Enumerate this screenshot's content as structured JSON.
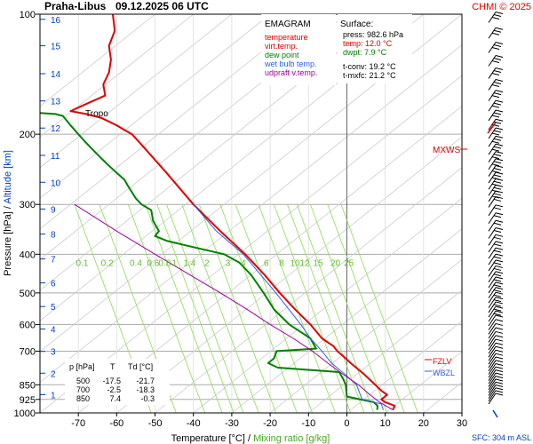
{
  "header": {
    "station": "Praha-Libus",
    "datetime": "09.12.2025 06 UTC",
    "copyright": "CHMI © 2025"
  },
  "legend": {
    "title": "EMAGRAM",
    "entries": [
      {
        "label": "temperature",
        "color": "#e00000"
      },
      {
        "label": "virt.temp.",
        "color": "#e00000"
      },
      {
        "label": "dew point",
        "color": "#008000"
      },
      {
        "label": "wet bulb temp.",
        "color": "#3060e0"
      },
      {
        "label": "udpraft v.temp.",
        "color": "#a000a0"
      }
    ]
  },
  "surface": {
    "title": "Surface:",
    "press": "press: 982.6 hPa",
    "temp": "temp: 12.0 °C",
    "dwpt": "dwpt: 7.9 °C",
    "tconv": "t-conv: 19.2 °C",
    "tmxfc": "t-mxfc: 21.2 °C"
  },
  "table": {
    "headers": [
      "p [hPa]",
      "T",
      "Td [°C]"
    ],
    "rows": [
      [
        "500",
        "-17.5",
        "-21.7"
      ],
      [
        "700",
        "-2.5",
        "-18.3"
      ],
      [
        "850",
        "7.4",
        "-0.3"
      ]
    ]
  },
  "labels": {
    "tropo": "Tropo",
    "mxws": "MXWS",
    "fzlv": "FZLV",
    "wbzl": "WBZL",
    "sfc": "SFC: 304 m ASL",
    "ylabel_pressure": "Pressure [hPa]",
    "ylabel_sep": " / ",
    "ylabel_altitude": "Altitude [km]",
    "xlabel_temp": "Temperature [°C]",
    "xlabel_sep": " / ",
    "xlabel_mix": "Mixing ratio [g/kg]"
  },
  "colors": {
    "temperature": "#e00000",
    "dewpoint": "#008000",
    "wetbulb": "#3060e0",
    "parcel": "#a000a0",
    "mixing": "#99dd66",
    "grid": "#aaaaaa",
    "axis_blue": "#0040c0"
  },
  "chart_data": {
    "type": "line",
    "title": "EMAGRAM",
    "xlabel": "Temperature [°C] / Mixing ratio [g/kg]",
    "ylabel": "Pressure [hPa] / Altitude [km]",
    "xlim": [
      -80,
      30
    ],
    "ylim": [
      1000,
      100
    ],
    "y_scale": "log",
    "x_ticks": [
      -70,
      -60,
      -50,
      -40,
      -30,
      -20,
      -10,
      0,
      10,
      20,
      30
    ],
    "pressure_ticks": [
      100,
      200,
      300,
      400,
      500,
      600,
      700,
      850,
      925,
      1000
    ],
    "altitude_ticks": [
      {
        "km": 1,
        "p": 900
      },
      {
        "km": 2,
        "p": 795
      },
      {
        "km": 3,
        "p": 701
      },
      {
        "km": 4,
        "p": 616
      },
      {
        "km": 5,
        "p": 541
      },
      {
        "km": 6,
        "p": 472
      },
      {
        "km": 7,
        "p": 411
      },
      {
        "km": 8,
        "p": 356
      },
      {
        "km": 9,
        "p": 308
      },
      {
        "km": 10,
        "p": 264
      },
      {
        "km": 11,
        "p": 226
      },
      {
        "km": 12,
        "p": 193
      },
      {
        "km": 13,
        "p": 165
      },
      {
        "km": 14,
        "p": 141
      },
      {
        "km": 15,
        "p": 120
      },
      {
        "km": 16,
        "p": 103
      }
    ],
    "mixing_ratio_labels": [
      "0.1",
      "0.2",
      "0.4",
      "0.6",
      "0.8",
      "1",
      "1.4",
      "2",
      "3",
      "4",
      "6",
      "8",
      "10",
      "12",
      "15",
      "20",
      "25"
    ],
    "mixing_ratio_values": [
      0.1,
      0.2,
      0.4,
      0.6,
      0.8,
      1,
      1.4,
      2,
      3,
      4,
      6,
      8,
      10,
      12,
      15,
      20,
      25
    ],
    "grid": true,
    "series": [
      {
        "name": "temperature",
        "points": [
          [
            12.0,
            982.6
          ],
          [
            12.5,
            960
          ],
          [
            10.0,
            940
          ],
          [
            9.0,
            925
          ],
          [
            10.5,
            900
          ],
          [
            9.0,
            880
          ],
          [
            7.4,
            850
          ],
          [
            4.5,
            800
          ],
          [
            1.0,
            750
          ],
          [
            -1.0,
            720
          ],
          [
            -2.5,
            700
          ],
          [
            -3.5,
            680
          ],
          [
            -6.5,
            650
          ],
          [
            -9.5,
            600
          ],
          [
            -13.5,
            550
          ],
          [
            -17.5,
            500
          ],
          [
            -21.5,
            450
          ],
          [
            -26.5,
            400
          ],
          [
            -33.0,
            350
          ],
          [
            -40.0,
            300
          ],
          [
            -47.0,
            250
          ],
          [
            -54.0,
            210
          ],
          [
            -56.0,
            200
          ],
          [
            -60.0,
            190
          ],
          [
            -64.0,
            182
          ],
          [
            -68.0,
            178
          ],
          [
            -72.0,
            175
          ],
          [
            -68.0,
            168
          ],
          [
            -63.0,
            160
          ],
          [
            -63.5,
            150
          ],
          [
            -62.0,
            140
          ],
          [
            -61.5,
            130
          ],
          [
            -62.0,
            120
          ],
          [
            -60.5,
            110
          ],
          [
            -61.0,
            100
          ]
        ]
      },
      {
        "name": "dew point",
        "points": [
          [
            7.9,
            982.6
          ],
          [
            8.0,
            960
          ],
          [
            7.0,
            940
          ],
          [
            0.0,
            910
          ],
          [
            -0.3,
            850
          ],
          [
            -1.0,
            820
          ],
          [
            -2.0,
            790
          ],
          [
            -18.0,
            770
          ],
          [
            -20.5,
            750
          ],
          [
            -19.0,
            730
          ],
          [
            -18.3,
            700
          ],
          [
            -8.0,
            690
          ],
          [
            -9.5,
            650
          ],
          [
            -15.0,
            600
          ],
          [
            -19.0,
            550
          ],
          [
            -21.7,
            500
          ],
          [
            -25.0,
            450
          ],
          [
            -28.0,
            420
          ],
          [
            -32.0,
            400
          ],
          [
            -42.0,
            380
          ],
          [
            -47.0,
            370
          ],
          [
            -50.0,
            360
          ],
          [
            -49.0,
            350
          ],
          [
            -50.5,
            330
          ],
          [
            -51.0,
            310
          ],
          [
            -53.5,
            300
          ],
          [
            -55.0,
            290
          ],
          [
            -57.0,
            270
          ],
          [
            -58.0,
            260
          ],
          [
            -60.0,
            250
          ],
          [
            -62.0,
            240
          ],
          [
            -64.0,
            230
          ],
          [
            -66.0,
            220
          ],
          [
            -68.0,
            210
          ],
          [
            -70.0,
            200
          ],
          [
            -72.0,
            190
          ],
          [
            -74.0,
            180
          ],
          [
            -76.0,
            178
          ],
          [
            -80.0,
            177
          ]
        ]
      },
      {
        "name": "wet bulb temp.",
        "points": [
          [
            9.5,
            982.6
          ],
          [
            9.0,
            950
          ],
          [
            4.0,
            925
          ],
          [
            2.5,
            850
          ],
          [
            -0.5,
            800
          ],
          [
            -4.0,
            750
          ],
          [
            -6.5,
            700
          ],
          [
            -9.5,
            650
          ],
          [
            -12.0,
            600
          ],
          [
            -18.5,
            500
          ],
          [
            -27.0,
            400
          ],
          [
            -34.0,
            350
          ],
          [
            -40.0,
            300
          ]
        ]
      },
      {
        "name": "udpraft v.temp.",
        "points": [
          [
            12.0,
            982.6
          ],
          [
            8.5,
            940
          ],
          [
            6.0,
            900
          ],
          [
            3.0,
            850
          ],
          [
            -1.0,
            800
          ],
          [
            -5.0,
            750
          ],
          [
            -9.0,
            700
          ],
          [
            -14.0,
            650
          ],
          [
            -20.0,
            600
          ],
          [
            -26.0,
            550
          ],
          [
            -33.0,
            500
          ],
          [
            -41.0,
            450
          ],
          [
            -50.0,
            400
          ],
          [
            -60.0,
            350
          ],
          [
            -71.0,
            300
          ]
        ]
      }
    ]
  }
}
